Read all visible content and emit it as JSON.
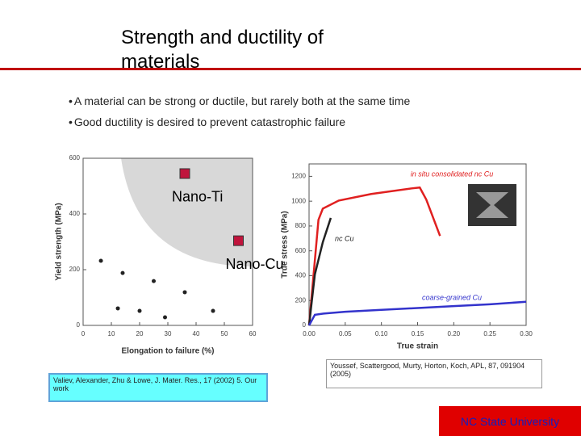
{
  "title": "Strength and ductility of materials",
  "bullets": [
    "A material can be strong or ductile, but rarely both at the same time",
    "Good ductility is desired to prevent catastrophic failure"
  ],
  "chart_data": [
    {
      "type": "scatter",
      "xlabel": "Elongation to failure (%)",
      "ylabel": "Yield strength (MPa)",
      "xlim": [
        0,
        60
      ],
      "ylim": [
        0,
        600
      ],
      "xticks": [
        0,
        10,
        20,
        30,
        40,
        50,
        60
      ],
      "yticks": [
        0,
        200,
        400,
        600
      ],
      "x": [
        6.3,
        14,
        25,
        36,
        46,
        12.3,
        20,
        29
      ],
      "values": [
        232,
        188,
        159,
        119,
        52,
        61,
        52,
        29
      ],
      "color": "#222222",
      "annotations": [
        {
          "text": "Nano-Ti",
          "x": 36,
          "y": 545,
          "color": "#c0143c"
        },
        {
          "text": "Nano-Cu",
          "x": 55,
          "y": 304,
          "color": "#c0143c"
        }
      ]
    },
    {
      "type": "line",
      "xlabel": "True strain",
      "ylabel": "True stress (MPa)",
      "xlim": [
        0,
        0.3
      ],
      "ylim": [
        0,
        1300
      ],
      "xticks": [
        {
          "value": 0,
          "label": "0.00"
        },
        {
          "value": 0.05,
          "label": "0.05"
        },
        {
          "value": 0.1,
          "label": "0.10"
        },
        {
          "value": 0.15,
          "label": "0.15"
        },
        {
          "value": 0.2,
          "label": "0.20"
        },
        {
          "value": 0.25,
          "label": "0.25"
        },
        {
          "value": 0.3,
          "label": "0.30"
        }
      ],
      "yticks": [
        0,
        200,
        400,
        600,
        800,
        1000,
        1200
      ],
      "series": [
        {
          "name": "in situ consolidated nc Cu",
          "color": "#e02020",
          "x": [
            0,
            0.013,
            0.019,
            0.041,
            0.086,
            0.142,
            0.153,
            0.162,
            0.181
          ],
          "values": [
            0,
            850,
            940,
            1005,
            1058,
            1103,
            1110,
            1013,
            720
          ]
        },
        {
          "name": "nc Cu",
          "color": "#222222",
          "x": [
            0,
            0.008,
            0.019,
            0.03
          ],
          "values": [
            0,
            410,
            670,
            865
          ]
        },
        {
          "name": "coarse-grained Cu",
          "color": "#3333cc",
          "x": [
            0,
            0.008,
            0.02,
            0.05,
            0.1,
            0.15,
            0.2,
            0.25,
            0.3
          ],
          "values": [
            0,
            85,
            95,
            110,
            125,
            140,
            155,
            170,
            190
          ]
        }
      ]
    }
  ],
  "citations": [
    "Valiev, Alexander, Zhu & Lowe, J. Mater. Res., 17 (2002) 5. Our work",
    "Youssef, Scattergood, Murty, Horton, Koch, APL, 87, 091904 (2005)"
  ],
  "footer": "NC State University"
}
